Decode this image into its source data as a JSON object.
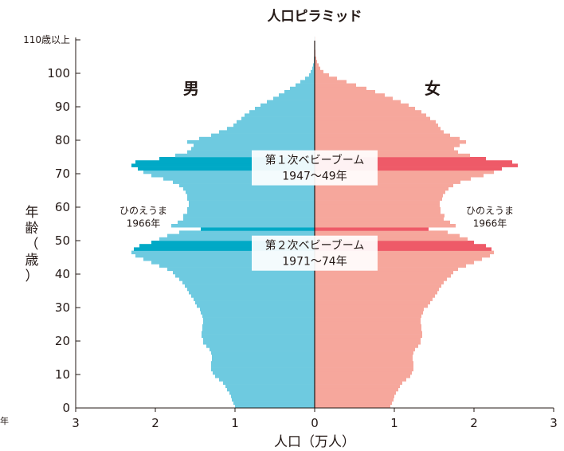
{
  "chart_data": {
    "type": "bar",
    "orientation": "horizontal",
    "layout": "population-pyramid",
    "title": "人口ピラミッド",
    "xlabel": "人口（万人）",
    "ylabel": "年齢（歳）",
    "xlim": [
      -3,
      3
    ],
    "ylim": [
      0,
      110
    ],
    "x_ticks": [
      {
        "value": -3,
        "label": "3"
      },
      {
        "value": -2,
        "label": "2"
      },
      {
        "value": -1,
        "label": "1"
      },
      {
        "value": 0,
        "label": "0"
      },
      {
        "value": 1,
        "label": "1"
      },
      {
        "value": 2,
        "label": "2"
      },
      {
        "value": 3,
        "label": "3"
      }
    ],
    "y_ticks": [
      {
        "value": 0,
        "label": "0"
      },
      {
        "value": 10,
        "label": "10"
      },
      {
        "value": 20,
        "label": "20"
      },
      {
        "value": 30,
        "label": "30"
      },
      {
        "value": 40,
        "label": "40"
      },
      {
        "value": 50,
        "label": "50"
      },
      {
        "value": 60,
        "label": "60"
      },
      {
        "value": 70,
        "label": "70"
      },
      {
        "value": 80,
        "label": "80"
      },
      {
        "value": 90,
        "label": "90"
      },
      {
        "value": 100,
        "label": "100"
      },
      {
        "value": 110,
        "label": "110歳以上"
      }
    ],
    "grid": false,
    "legend": "none",
    "side_labels": {
      "male": "男",
      "female": "女"
    },
    "colors": {
      "male": "#6ecae0",
      "male_highlight": "#00a9c6",
      "female": "#f6a79c",
      "female_highlight": "#ee5a68",
      "axis": "#231815",
      "callout_bg": "#ffffff"
    },
    "ages": [
      0,
      1,
      2,
      3,
      4,
      5,
      6,
      7,
      8,
      9,
      10,
      11,
      12,
      13,
      14,
      15,
      16,
      17,
      18,
      19,
      20,
      21,
      22,
      23,
      24,
      25,
      26,
      27,
      28,
      29,
      30,
      31,
      32,
      33,
      34,
      35,
      36,
      37,
      38,
      39,
      40,
      41,
      42,
      43,
      44,
      45,
      46,
      47,
      48,
      49,
      50,
      51,
      52,
      53,
      54,
      55,
      56,
      57,
      58,
      59,
      60,
      61,
      62,
      63,
      64,
      65,
      66,
      67,
      68,
      69,
      70,
      71,
      72,
      73,
      74,
      75,
      76,
      77,
      78,
      79,
      80,
      81,
      82,
      83,
      84,
      85,
      86,
      87,
      88,
      89,
      90,
      91,
      92,
      93,
      94,
      95,
      96,
      97,
      98,
      99,
      100,
      101,
      102,
      103,
      104,
      105,
      106,
      107,
      108,
      109,
      110
    ],
    "series": [
      {
        "name": "男",
        "values": [
          1.0,
          1.02,
          1.04,
          1.05,
          1.07,
          1.1,
          1.12,
          1.15,
          1.2,
          1.25,
          1.28,
          1.3,
          1.3,
          1.3,
          1.29,
          1.29,
          1.3,
          1.32,
          1.36,
          1.4,
          1.4,
          1.42,
          1.42,
          1.41,
          1.41,
          1.4,
          1.4,
          1.41,
          1.43,
          1.44,
          1.48,
          1.5,
          1.52,
          1.55,
          1.58,
          1.6,
          1.63,
          1.66,
          1.7,
          1.75,
          1.78,
          1.85,
          1.95,
          2.05,
          2.15,
          2.25,
          2.3,
          2.27,
          2.2,
          2.05,
          1.95,
          1.85,
          1.7,
          1.43,
          1.8,
          1.72,
          1.65,
          1.65,
          1.6,
          1.6,
          1.58,
          1.58,
          1.6,
          1.6,
          1.62,
          1.65,
          1.7,
          1.78,
          1.9,
          2.05,
          2.15,
          2.22,
          2.3,
          2.25,
          1.95,
          1.75,
          1.6,
          1.55,
          1.52,
          1.6,
          1.45,
          1.3,
          1.2,
          1.1,
          1.02,
          0.98,
          0.92,
          0.88,
          0.82,
          0.75,
          0.68,
          0.6,
          0.52,
          0.45,
          0.38,
          0.31,
          0.24,
          0.18,
          0.12,
          0.07,
          0.05,
          0.03,
          0.02,
          0.01,
          0.01,
          0.005,
          0.005,
          0.003,
          0.002,
          0.001,
          0.001
        ]
      },
      {
        "name": "女",
        "values": [
          0.95,
          0.97,
          0.99,
          1.0,
          1.02,
          1.05,
          1.07,
          1.1,
          1.15,
          1.2,
          1.22,
          1.24,
          1.24,
          1.24,
          1.23,
          1.23,
          1.24,
          1.26,
          1.3,
          1.33,
          1.33,
          1.35,
          1.35,
          1.34,
          1.34,
          1.33,
          1.33,
          1.34,
          1.36,
          1.37,
          1.42,
          1.45,
          1.48,
          1.51,
          1.54,
          1.56,
          1.59,
          1.62,
          1.66,
          1.71,
          1.74,
          1.8,
          1.9,
          2.0,
          2.1,
          2.2,
          2.25,
          2.22,
          2.15,
          2.0,
          1.92,
          1.82,
          1.67,
          1.43,
          1.77,
          1.7,
          1.62,
          1.63,
          1.58,
          1.58,
          1.57,
          1.57,
          1.6,
          1.61,
          1.64,
          1.68,
          1.74,
          1.83,
          1.96,
          2.12,
          2.25,
          2.35,
          2.55,
          2.48,
          2.15,
          1.95,
          1.8,
          1.75,
          1.82,
          1.9,
          1.82,
          1.7,
          1.62,
          1.58,
          1.55,
          1.52,
          1.45,
          1.4,
          1.34,
          1.26,
          1.18,
          1.08,
          0.98,
          0.88,
          0.76,
          0.65,
          0.52,
          0.4,
          0.28,
          0.18,
          0.11,
          0.07,
          0.05,
          0.03,
          0.02,
          0.01,
          0.01,
          0.005,
          0.003,
          0.002,
          0.002
        ]
      }
    ],
    "highlight_ages": [
      47,
      48,
      49,
      53,
      71,
      72,
      73,
      74
    ],
    "annotations": [
      {
        "id": "boom1",
        "lines": [
          "第１次ベビーブーム",
          "1947〜49年"
        ],
        "age": 72
      },
      {
        "id": "boom2",
        "lines": [
          "第２次ベビーブーム",
          "1971〜74年"
        ],
        "age": 46.5
      },
      {
        "id": "hinoe-male",
        "lines": [
          "ひのえうま",
          "1966年"
        ],
        "age": 56.5,
        "side": "male"
      },
      {
        "id": "hinoe-female",
        "lines": [
          "ひのえうま",
          "1966年"
        ],
        "age": 56.5,
        "side": "female"
      }
    ],
    "edge_fragment": "年"
  }
}
